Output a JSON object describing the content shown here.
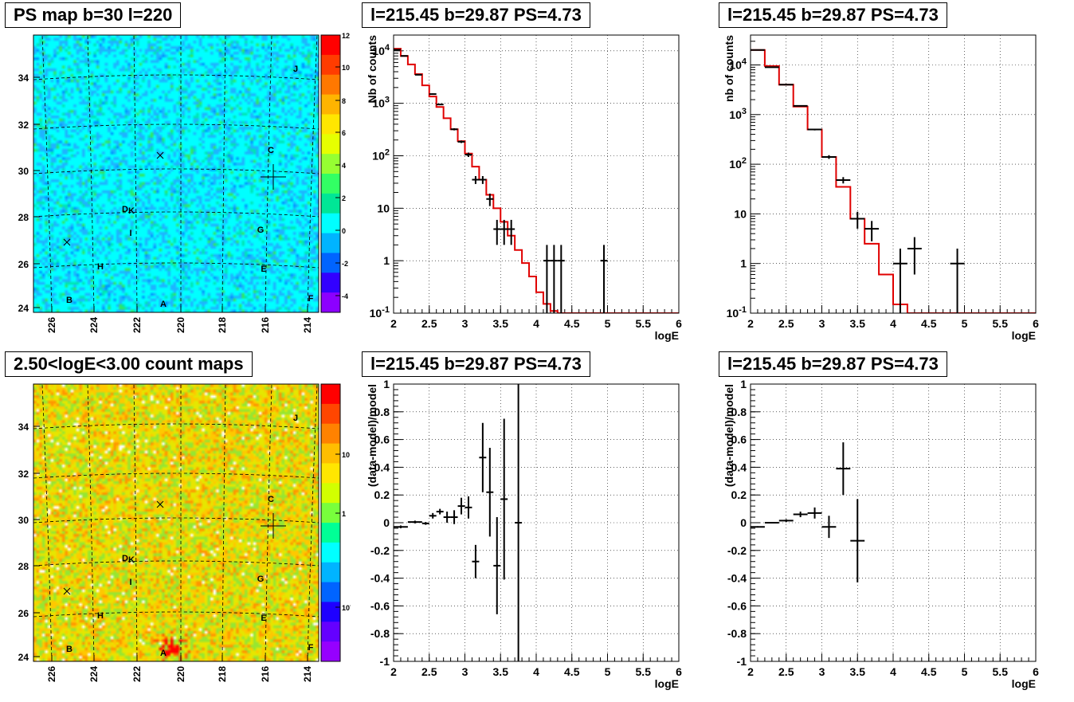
{
  "maps": [
    {
      "title": "PS map b=30 l=220",
      "kind": "ps",
      "xticks": [
        "226",
        "224",
        "222",
        "220",
        "218",
        "216",
        "214"
      ],
      "yticks": [
        "24",
        "26",
        "28",
        "30",
        "32",
        "34"
      ],
      "colorbar_ticks": [
        "12",
        "10",
        "8",
        "6",
        "4",
        "2",
        "0",
        "-2",
        "-4"
      ],
      "source_labels": [
        "J",
        "C",
        "D",
        "K",
        "G",
        "I",
        "H",
        "E",
        "B",
        "A",
        "F"
      ]
    },
    {
      "title": "2.50<logE<3.00 count maps",
      "kind": "counts",
      "xticks": [
        "226",
        "224",
        "222",
        "220",
        "218",
        "216",
        "214"
      ],
      "yticks": [
        "24",
        "26",
        "28",
        "30",
        "32",
        "34"
      ],
      "colorbar_ticks": [
        "10",
        "1",
        "10-1"
      ],
      "source_labels": [
        "J",
        "C",
        "D",
        "K",
        "G",
        "I",
        "H",
        "E",
        "B",
        "A",
        "F"
      ]
    }
  ],
  "chart_data": [
    {
      "type": "line",
      "title": "l=215.45 b=29.87 PS=4.73",
      "xlabel": "logE",
      "ylabel": "Nb of counts",
      "log_y": true,
      "xlim": [
        2,
        6
      ],
      "ylim": [
        0.1,
        20000
      ],
      "xticks": [
        "2",
        "2.5",
        "3",
        "3.5",
        "4",
        "4.5",
        "5",
        "5.5",
        "6"
      ],
      "yticks": [
        "10^-1",
        "1",
        "10",
        "10^2",
        "10^3",
        "10^4"
      ],
      "grid": true,
      "model_step": {
        "edges": [
          2.0,
          2.1,
          2.2,
          2.3,
          2.4,
          2.5,
          2.6,
          2.7,
          2.8,
          2.9,
          3.0,
          3.1,
          3.2,
          3.3,
          3.4,
          3.5,
          3.6,
          3.7,
          3.8,
          3.9,
          4.0,
          4.1,
          4.2,
          4.3,
          6.0
        ],
        "values": [
          11000,
          8000,
          5500,
          3600,
          2200,
          1350,
          850,
          520,
          320,
          190,
          110,
          62,
          35,
          18,
          10,
          5.5,
          3,
          1.6,
          0.9,
          0.5,
          0.25,
          0.15,
          0.11,
          0.1
        ]
      },
      "points": [
        {
          "x": 2.05,
          "y": 10500,
          "xerr": 0.05,
          "ylo": 10400,
          "yhi": 10600
        },
        {
          "x": 2.15,
          "y": 8000,
          "xerr": 0.05,
          "ylo": 7900,
          "yhi": 8100
        },
        {
          "x": 2.35,
          "y": 3500,
          "xerr": 0.05,
          "ylo": 3450,
          "yhi": 3550
        },
        {
          "x": 2.55,
          "y": 1500,
          "xerr": 0.05,
          "ylo": 1460,
          "yhi": 1540
        },
        {
          "x": 2.65,
          "y": 950,
          "xerr": 0.05,
          "ylo": 920,
          "yhi": 980
        },
        {
          "x": 2.85,
          "y": 320,
          "xerr": 0.05,
          "ylo": 305,
          "yhi": 335
        },
        {
          "x": 2.95,
          "y": 185,
          "xerr": 0.05,
          "ylo": 175,
          "yhi": 195
        },
        {
          "x": 3.05,
          "y": 105,
          "xerr": 0.05,
          "ylo": 95,
          "yhi": 115
        },
        {
          "x": 3.15,
          "y": 35,
          "xerr": 0.05,
          "ylo": 29,
          "yhi": 41
        },
        {
          "x": 3.25,
          "y": 35,
          "xerr": 0.05,
          "ylo": 29,
          "yhi": 41
        },
        {
          "x": 3.35,
          "y": 15,
          "xerr": 0.05,
          "ylo": 11,
          "yhi": 19
        },
        {
          "x": 3.45,
          "y": 4,
          "xerr": 0.05,
          "ylo": 2,
          "yhi": 6
        },
        {
          "x": 3.55,
          "y": 4,
          "xerr": 0.05,
          "ylo": 2,
          "yhi": 6
        },
        {
          "x": 3.65,
          "y": 4,
          "xerr": 0.05,
          "ylo": 2,
          "yhi": 6
        },
        {
          "x": 4.15,
          "y": 1,
          "xerr": 0.05,
          "ylo": 0.1,
          "yhi": 2
        },
        {
          "x": 4.25,
          "y": 1,
          "xerr": 0.05,
          "ylo": 0.1,
          "yhi": 2
        },
        {
          "x": 4.35,
          "y": 1,
          "xerr": 0.05,
          "ylo": 0.1,
          "yhi": 2
        },
        {
          "x": 4.95,
          "y": 1,
          "xerr": 0.05,
          "ylo": 0.1,
          "yhi": 2
        }
      ]
    },
    {
      "type": "line",
      "title": "l=215.45 b=29.87 PS=4.73",
      "xlabel": "logE",
      "ylabel": "nb of counts",
      "log_y": true,
      "xlim": [
        2,
        6
      ],
      "ylim": [
        0.1,
        40000
      ],
      "xticks": [
        "2",
        "2.5",
        "3",
        "3.5",
        "4",
        "4.5",
        "5",
        "5.5",
        "6"
      ],
      "yticks": [
        "10^-1",
        "1",
        "10",
        "10^2",
        "10^3",
        "10^4"
      ],
      "grid": true,
      "model_step": {
        "edges": [
          2.0,
          2.2,
          2.4,
          2.6,
          2.8,
          3.0,
          3.2,
          3.4,
          3.6,
          3.8,
          4.0,
          4.2,
          6.0
        ],
        "values": [
          20000,
          9500,
          4000,
          1450,
          500,
          140,
          35,
          8,
          2.5,
          0.6,
          0.15,
          0.1
        ]
      },
      "points": [
        {
          "x": 2.1,
          "y": 20000,
          "xerr": 0.1,
          "ylo": 19800,
          "yhi": 20200
        },
        {
          "x": 2.3,
          "y": 9000,
          "xerr": 0.1,
          "ylo": 8900,
          "yhi": 9100
        },
        {
          "x": 2.5,
          "y": 4000,
          "xerr": 0.1,
          "ylo": 3930,
          "yhi": 4070
        },
        {
          "x": 2.7,
          "y": 1500,
          "xerr": 0.1,
          "ylo": 1460,
          "yhi": 1540
        },
        {
          "x": 2.9,
          "y": 500,
          "xerr": 0.1,
          "ylo": 480,
          "yhi": 520
        },
        {
          "x": 3.1,
          "y": 140,
          "xerr": 0.1,
          "ylo": 128,
          "yhi": 152
        },
        {
          "x": 3.3,
          "y": 48,
          "xerr": 0.1,
          "ylo": 41,
          "yhi": 55
        },
        {
          "x": 3.5,
          "y": 8,
          "xerr": 0.1,
          "ylo": 5,
          "yhi": 11
        },
        {
          "x": 3.7,
          "y": 5,
          "xerr": 0.1,
          "ylo": 2.8,
          "yhi": 7.2
        },
        {
          "x": 4.1,
          "y": 1,
          "xerr": 0.1,
          "ylo": 0.1,
          "yhi": 2
        },
        {
          "x": 4.3,
          "y": 2,
          "xerr": 0.1,
          "ylo": 0.6,
          "yhi": 3.4
        },
        {
          "x": 4.9,
          "y": 1,
          "xerr": 0.1,
          "ylo": 0.1,
          "yhi": 2
        }
      ]
    },
    {
      "type": "scatter",
      "title": "l=215.45 b=29.87 PS=4.73",
      "xlabel": "logE",
      "ylabel": "(data-model)/model",
      "log_y": false,
      "xlim": [
        2,
        6
      ],
      "ylim": [
        -1,
        1
      ],
      "xticks": [
        "2",
        "2.5",
        "3",
        "3.5",
        "4",
        "4.5",
        "5",
        "5.5",
        "6"
      ],
      "yticks": [
        "-1",
        "-0.8",
        "-0.6",
        "-0.4",
        "-0.2",
        "0",
        "0.2",
        "0.4",
        "0.6",
        "0.8",
        "1"
      ],
      "grid": true,
      "points": [
        {
          "x": 2.1,
          "y": -0.03,
          "xerr": 0.1,
          "yerr": 0.01
        },
        {
          "x": 2.3,
          "y": 0.005,
          "xerr": 0.1,
          "yerr": 0.01
        },
        {
          "x": 2.45,
          "y": -0.005,
          "xerr": 0.05,
          "yerr": 0.01
        },
        {
          "x": 2.55,
          "y": 0.05,
          "xerr": 0.05,
          "yerr": 0.02
        },
        {
          "x": 2.65,
          "y": 0.08,
          "xerr": 0.05,
          "yerr": 0.02
        },
        {
          "x": 2.75,
          "y": 0.04,
          "xerr": 0.05,
          "yerr": 0.04
        },
        {
          "x": 2.85,
          "y": 0.04,
          "xerr": 0.05,
          "yerr": 0.05
        },
        {
          "x": 2.95,
          "y": 0.12,
          "xerr": 0.05,
          "yerr": 0.06
        },
        {
          "x": 3.05,
          "y": 0.11,
          "xerr": 0.05,
          "yerr": 0.08
        },
        {
          "x": 3.15,
          "y": -0.28,
          "xerr": 0.05,
          "yerr": 0.12
        },
        {
          "x": 3.25,
          "y": 0.47,
          "xerr": 0.05,
          "yerr": 0.25
        },
        {
          "x": 3.35,
          "y": 0.22,
          "xerr": 0.05,
          "yerr": 0.32
        },
        {
          "x": 3.45,
          "y": -0.31,
          "xerr": 0.05,
          "yerr": 0.35
        },
        {
          "x": 3.55,
          "y": 0.17,
          "xerr": 0.05,
          "yerr": 0.58
        },
        {
          "x": 3.75,
          "y": 0.0,
          "xerr": 0.05,
          "yerr": 1.05
        }
      ]
    },
    {
      "type": "scatter",
      "title": "l=215.45 b=29.87 PS=4.73",
      "xlabel": "logE",
      "ylabel": "(data-model)/model",
      "log_y": false,
      "xlim": [
        2,
        6
      ],
      "ylim": [
        -1,
        1
      ],
      "xticks": [
        "2",
        "2.5",
        "3",
        "3.5",
        "4",
        "4.5",
        "5",
        "5.5",
        "6"
      ],
      "yticks": [
        "-1",
        "-0.8",
        "-0.6",
        "-0.4",
        "-0.2",
        "0",
        "0.2",
        "0.4",
        "0.6",
        "0.8",
        "1"
      ],
      "grid": true,
      "points": [
        {
          "x": 2.1,
          "y": -0.03,
          "xerr": 0.1,
          "yerr": 0.005
        },
        {
          "x": 2.3,
          "y": 0.0,
          "xerr": 0.1,
          "yerr": 0.005
        },
        {
          "x": 2.5,
          "y": 0.015,
          "xerr": 0.1,
          "yerr": 0.01
        },
        {
          "x": 2.7,
          "y": 0.06,
          "xerr": 0.1,
          "yerr": 0.02
        },
        {
          "x": 2.9,
          "y": 0.07,
          "xerr": 0.1,
          "yerr": 0.04
        },
        {
          "x": 3.1,
          "y": -0.03,
          "xerr": 0.1,
          "yerr": 0.08
        },
        {
          "x": 3.3,
          "y": 0.39,
          "xerr": 0.1,
          "yerr": 0.19
        },
        {
          "x": 3.5,
          "y": -0.13,
          "xerr": 0.1,
          "yerr": 0.3
        }
      ]
    }
  ]
}
